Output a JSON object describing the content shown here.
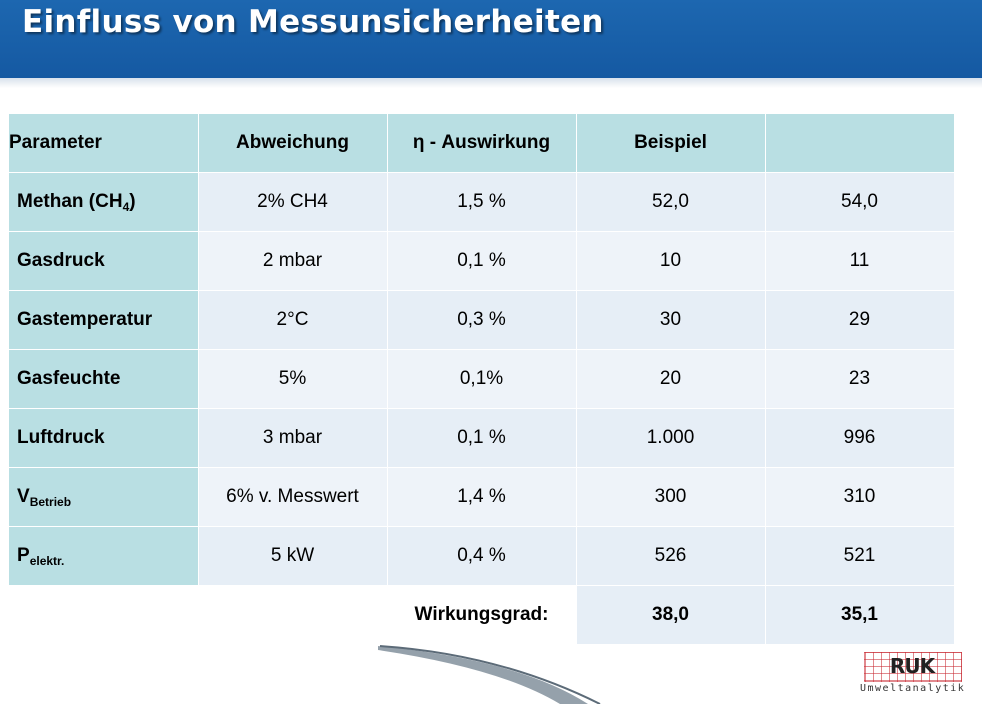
{
  "title": "Einfluss von Messunsicherheiten",
  "table": {
    "headers": [
      "Parameter",
      "Abweichung",
      "η - Auswirkung",
      "Beispiel",
      ""
    ],
    "rows": [
      {
        "param": "Methan (CH",
        "param_sub": "4",
        "param_tail": ")",
        "deviation": "2% CH4",
        "effect": "1,5 %",
        "ex1": "52,0",
        "ex2": "54,0"
      },
      {
        "param": "Gasdruck",
        "param_sub": "",
        "param_tail": "",
        "deviation": "2 mbar",
        "effect": "0,1 %",
        "ex1": "10",
        "ex2": "11"
      },
      {
        "param": "Gastemperatur",
        "param_sub": "",
        "param_tail": "",
        "deviation": "2°C",
        "effect": "0,3 %",
        "ex1": "30",
        "ex2": "29"
      },
      {
        "param": "Gasfeuchte",
        "param_sub": "",
        "param_tail": "",
        "deviation": "5%",
        "effect": "0,1%",
        "ex1": "20",
        "ex2": "23"
      },
      {
        "param": "Luftdruck",
        "param_sub": "",
        "param_tail": "",
        "deviation": "3 mbar",
        "effect": "0,1 %",
        "ex1": "1.000",
        "ex2": "996"
      },
      {
        "param": "V",
        "param_sub": "Betrieb",
        "param_tail": "",
        "deviation": "6% v. Messwert",
        "effect": "1,4 %",
        "ex1": "300",
        "ex2": "310"
      },
      {
        "param": "P",
        "param_sub": "elektr.",
        "param_tail": "",
        "deviation": "5 kW",
        "effect": "0,4 %",
        "ex1": "526",
        "ex2": "521"
      }
    ],
    "footer": {
      "label": "Wirkungsgrad:",
      "ex1": "38,0",
      "ex2": "35,1"
    }
  },
  "logo": {
    "mark": "RUK",
    "subtitle": "Umweltanalytik"
  }
}
